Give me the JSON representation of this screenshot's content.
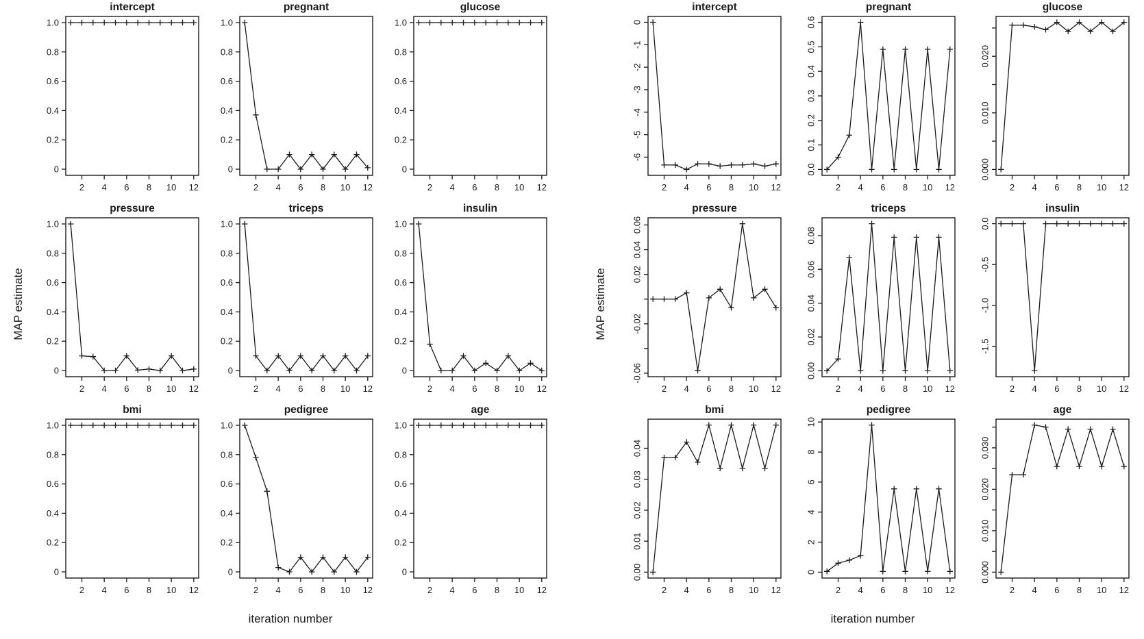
{
  "colors": {
    "line": "#1a1a1a",
    "background": "#ffffff"
  },
  "chart_data": [
    {
      "id": "left",
      "type": "line",
      "marker": "plus",
      "xlabel": "iteration number",
      "ylabel": "MAP estimate",
      "x": [
        1,
        2,
        3,
        4,
        5,
        6,
        7,
        8,
        9,
        10,
        11,
        12
      ],
      "xticks": [
        2,
        4,
        6,
        8,
        10,
        12
      ],
      "ytick_rotated": false,
      "grid": false,
      "panels": [
        {
          "title": "intercept",
          "ylim": [
            -0.042,
            1.042
          ],
          "yticks": [
            [
              1.0,
              "1.0"
            ],
            [
              0.8,
              "0.8"
            ],
            [
              0.6,
              "0.6"
            ],
            [
              0.4,
              "0.4"
            ],
            [
              0.2,
              "0.2"
            ],
            [
              0,
              "0"
            ]
          ],
          "values": [
            1.0,
            1.0,
            1.0,
            1.0,
            1.0,
            1.0,
            1.0,
            1.0,
            1.0,
            1.0,
            1.0,
            1.0
          ]
        },
        {
          "title": "pregnant",
          "ylim": [
            -0.042,
            1.042
          ],
          "yticks": [
            [
              1.0,
              "1.0"
            ],
            [
              0.8,
              "0.8"
            ],
            [
              0.6,
              "0.6"
            ],
            [
              0.4,
              "0.4"
            ],
            [
              0.2,
              "0.2"
            ],
            [
              0,
              "0"
            ]
          ],
          "values": [
            1.0,
            0.37,
            0,
            0,
            0.1,
            0,
            0.1,
            0,
            0.1,
            0,
            0.1,
            0.01
          ]
        },
        {
          "title": "glucose",
          "ylim": [
            -0.042,
            1.042
          ],
          "yticks": [
            [
              1.0,
              "1.0"
            ],
            [
              0.8,
              "0.8"
            ],
            [
              0.6,
              "0.6"
            ],
            [
              0.4,
              "0.4"
            ],
            [
              0.2,
              "0.2"
            ],
            [
              0,
              "0"
            ]
          ],
          "values": [
            1.0,
            1.0,
            1.0,
            1.0,
            1.0,
            1.0,
            1.0,
            1.0,
            1.0,
            1.0,
            1.0,
            1.0
          ]
        },
        {
          "title": "pressure",
          "ylim": [
            -0.042,
            1.042
          ],
          "yticks": [
            [
              1.0,
              "1.0"
            ],
            [
              0.8,
              "0.8"
            ],
            [
              0.6,
              "0.6"
            ],
            [
              0.4,
              "0.4"
            ],
            [
              0.2,
              "0.2"
            ],
            [
              0,
              "0"
            ]
          ],
          "values": [
            1.0,
            0.1,
            0.095,
            0,
            0,
            0.1,
            0.003,
            0.01,
            0,
            0.1,
            0,
            0.01
          ]
        },
        {
          "title": "triceps",
          "ylim": [
            -0.042,
            1.042
          ],
          "yticks": [
            [
              1.0,
              "1.0"
            ],
            [
              0.8,
              "0.8"
            ],
            [
              0.6,
              "0.6"
            ],
            [
              0.4,
              "0.4"
            ],
            [
              0.2,
              "0.2"
            ],
            [
              0,
              "0"
            ]
          ],
          "values": [
            1.0,
            0.1,
            0,
            0.1,
            0,
            0.1,
            0,
            0.1,
            0,
            0.1,
            0,
            0.1
          ]
        },
        {
          "title": "insulin",
          "ylim": [
            -0.042,
            1.042
          ],
          "yticks": [
            [
              1.0,
              "1.0"
            ],
            [
              0.8,
              "0.8"
            ],
            [
              0.6,
              "0.6"
            ],
            [
              0.4,
              "0.4"
            ],
            [
              0.2,
              "0.2"
            ],
            [
              0,
              "0"
            ]
          ],
          "values": [
            1.0,
            0.18,
            0,
            0,
            0.1,
            0,
            0.05,
            0,
            0.1,
            0,
            0.05,
            0
          ]
        },
        {
          "title": "bmi",
          "ylim": [
            -0.042,
            1.042
          ],
          "yticks": [
            [
              1.0,
              "1.0"
            ],
            [
              0.8,
              "0.8"
            ],
            [
              0.6,
              "0.6"
            ],
            [
              0.4,
              "0.4"
            ],
            [
              0.2,
              "0.2"
            ],
            [
              0,
              "0"
            ]
          ],
          "values": [
            1.0,
            1.0,
            1.0,
            1.0,
            1.0,
            1.0,
            1.0,
            1.0,
            1.0,
            1.0,
            1.0,
            1.0
          ]
        },
        {
          "title": "pedigree",
          "ylim": [
            -0.042,
            1.042
          ],
          "yticks": [
            [
              1.0,
              "1.0"
            ],
            [
              0.8,
              "0.8"
            ],
            [
              0.6,
              "0.6"
            ],
            [
              0.4,
              "0.4"
            ],
            [
              0.2,
              "0.2"
            ],
            [
              0,
              "0"
            ]
          ],
          "values": [
            1.0,
            0.78,
            0.55,
            0.03,
            0,
            0.1,
            0,
            0.1,
            0,
            0.1,
            0,
            0.1
          ]
        },
        {
          "title": "age",
          "ylim": [
            -0.042,
            1.042
          ],
          "yticks": [
            [
              1.0,
              "1.0"
            ],
            [
              0.8,
              "0.8"
            ],
            [
              0.6,
              "0.6"
            ],
            [
              0.4,
              "0.4"
            ],
            [
              0.2,
              "0.2"
            ],
            [
              0,
              "0"
            ]
          ],
          "values": [
            1.0,
            1.0,
            1.0,
            1.0,
            1.0,
            1.0,
            1.0,
            1.0,
            1.0,
            1.0,
            1.0,
            1.0
          ]
        }
      ]
    },
    {
      "id": "right",
      "type": "line",
      "marker": "plus",
      "xlabel": "iteration number",
      "ylabel": "MAP estimate",
      "x": [
        1,
        2,
        3,
        4,
        5,
        6,
        7,
        8,
        9,
        10,
        11,
        12
      ],
      "xticks": [
        2,
        4,
        6,
        8,
        10,
        12
      ],
      "ytick_rotated": true,
      "grid": false,
      "panels": [
        {
          "title": "intercept",
          "ylim": [
            -6.81,
            0.26
          ],
          "yticks": [
            [
              0,
              "0"
            ],
            [
              -1,
              "-1"
            ],
            [
              -2,
              "-2"
            ],
            [
              -3,
              "-3"
            ],
            [
              -4,
              "-4"
            ],
            [
              -5,
              "-5"
            ],
            [
              -6,
              "-6"
            ]
          ],
          "values": [
            0,
            -6.35,
            -6.35,
            -6.55,
            -6.3,
            -6.3,
            -6.4,
            -6.35,
            -6.35,
            -6.3,
            -6.4,
            -6.3
          ]
        },
        {
          "title": "pregnant",
          "ylim": [
            -0.024,
            0.624
          ],
          "yticks": [
            [
              0,
              "0.0"
            ],
            [
              0.1,
              "0.1"
            ],
            [
              0.2,
              "0.2"
            ],
            [
              0.3,
              "0.3"
            ],
            [
              0.4,
              "0.4"
            ],
            [
              0.5,
              "0.5"
            ],
            [
              0.6,
              "0.6"
            ]
          ],
          "values": [
            0,
            0.05,
            0.14,
            0.6,
            0,
            0.49,
            0,
            0.49,
            0,
            0.49,
            0,
            0.49
          ]
        },
        {
          "title": "glucose",
          "ylim": [
            -0.00104,
            0.02704
          ],
          "yticks": [
            [
              0,
              "0.000"
            ],
            [
              0.005,
              ""
            ],
            [
              0.01,
              "0.010"
            ],
            [
              0.015,
              ""
            ],
            [
              0.02,
              "0.020"
            ],
            [
              0.025,
              ""
            ]
          ],
          "values": [
            0,
            0.0255,
            0.0255,
            0.0252,
            0.0247,
            0.026,
            0.0244,
            0.026,
            0.0244,
            0.026,
            0.0244,
            0.026
          ]
        },
        {
          "title": "pressure",
          "ylim": [
            -0.0628,
            0.0658
          ],
          "yticks": [
            [
              0.06,
              "0.06"
            ],
            [
              0.04,
              "0.04"
            ],
            [
              0.02,
              "0.02"
            ],
            [
              0,
              ""
            ],
            [
              -0.02,
              "-0.02"
            ],
            [
              -0.04,
              ""
            ],
            [
              -0.06,
              "-0.06"
            ]
          ],
          "values": [
            0,
            0,
            0,
            0.005,
            -0.058,
            0.001,
            0.008,
            -0.007,
            0.061,
            0.001,
            0.008,
            -0.007
          ]
        },
        {
          "title": "triceps",
          "ylim": [
            -0.0035,
            0.0905
          ],
          "yticks": [
            [
              0,
              "0.00"
            ],
            [
              0.02,
              "0.02"
            ],
            [
              0.04,
              "0.04"
            ],
            [
              0.06,
              "0.06"
            ],
            [
              0.08,
              "0.08"
            ]
          ],
          "values": [
            0,
            0.007,
            0.067,
            0,
            0.087,
            0,
            0.079,
            0,
            0.079,
            0,
            0.079,
            0
          ]
        },
        {
          "title": "insulin",
          "ylim": [
            -1.872,
            0.072
          ],
          "yticks": [
            [
              0,
              "0.0"
            ],
            [
              -0.5,
              "-0.5"
            ],
            [
              -1,
              "-1.0"
            ],
            [
              -1.5,
              "-1.5"
            ]
          ],
          "values": [
            0,
            0,
            0,
            -1.8,
            0,
            0,
            0,
            0,
            0,
            0,
            0,
            0
          ]
        },
        {
          "title": "bmi",
          "ylim": [
            -0.0019,
            0.0494
          ],
          "yticks": [
            [
              0,
              "0.00"
            ],
            [
              0.01,
              "0.01"
            ],
            [
              0.02,
              "0.02"
            ],
            [
              0.03,
              "0.03"
            ],
            [
              0.04,
              "0.04"
            ]
          ],
          "values": [
            0,
            0.037,
            0.037,
            0.042,
            0.0355,
            0.0475,
            0.0335,
            0.0475,
            0.0335,
            0.0475,
            0.0335,
            0.0475
          ]
        },
        {
          "title": "pedigree",
          "ylim": [
            -0.392,
            10.192
          ],
          "yticks": [
            [
              0,
              "0"
            ],
            [
              2,
              "2"
            ],
            [
              4,
              "4"
            ],
            [
              6,
              "6"
            ],
            [
              8,
              "8"
            ],
            [
              10,
              "10"
            ]
          ],
          "values": [
            0.05,
            0.6,
            0.8,
            1.1,
            9.8,
            0.05,
            5.55,
            0.05,
            5.55,
            0.05,
            5.55,
            0.05
          ]
        },
        {
          "title": "age",
          "ylim": [
            -0.00142,
            0.03692
          ],
          "yticks": [
            [
              0,
              "0.000"
            ],
            [
              0.005,
              ""
            ],
            [
              0.01,
              "0.010"
            ],
            [
              0.015,
              ""
            ],
            [
              0.02,
              "0.020"
            ],
            [
              0.025,
              ""
            ],
            [
              0.03,
              "0.030"
            ],
            [
              0.035,
              ""
            ]
          ],
          "values": [
            0,
            0.0235,
            0.0235,
            0.0355,
            0.035,
            0.0255,
            0.0345,
            0.0255,
            0.0345,
            0.0255,
            0.0345,
            0.0255
          ]
        }
      ]
    }
  ]
}
